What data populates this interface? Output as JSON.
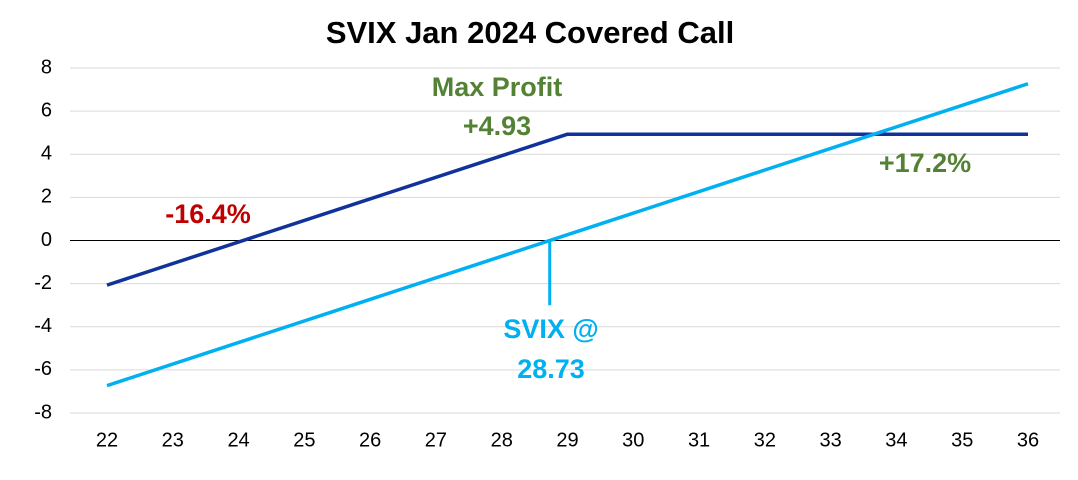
{
  "chart_data": {
    "type": "line",
    "title": "SVIX Jan 2024 Covered Call",
    "x": [
      22,
      29,
      36
    ],
    "series": [
      {
        "name": "Covered Call",
        "color": "#10329a",
        "values": [
          -2.07,
          4.93,
          4.93
        ]
      },
      {
        "name": "SVIX",
        "color": "#00b0f0",
        "values": [
          -6.73,
          0.27,
          7.27
        ]
      }
    ],
    "xlim": [
      22,
      36
    ],
    "xticks": [
      22,
      23,
      24,
      25,
      26,
      27,
      28,
      29,
      30,
      31,
      32,
      33,
      34,
      35,
      36
    ],
    "ylim": [
      -8,
      8
    ],
    "yticks": [
      -8,
      -6,
      -4,
      -2,
      0,
      2,
      4,
      6,
      8
    ],
    "grid": true,
    "reference_line": {
      "x": 28.73,
      "y": [
        -3,
        0
      ],
      "color": "#00b0f0"
    },
    "annotations": [
      {
        "text": "Max Profit",
        "color": "#548235"
      },
      {
        "text": "+4.93",
        "color": "#548235"
      },
      {
        "text": "-16.4%",
        "color": "#c00000"
      },
      {
        "text": "+17.2%",
        "color": "#548235"
      },
      {
        "text": "SVIX @",
        "color": "#00b0f0"
      },
      {
        "text": "28.73",
        "color": "#00b0f0"
      }
    ]
  }
}
